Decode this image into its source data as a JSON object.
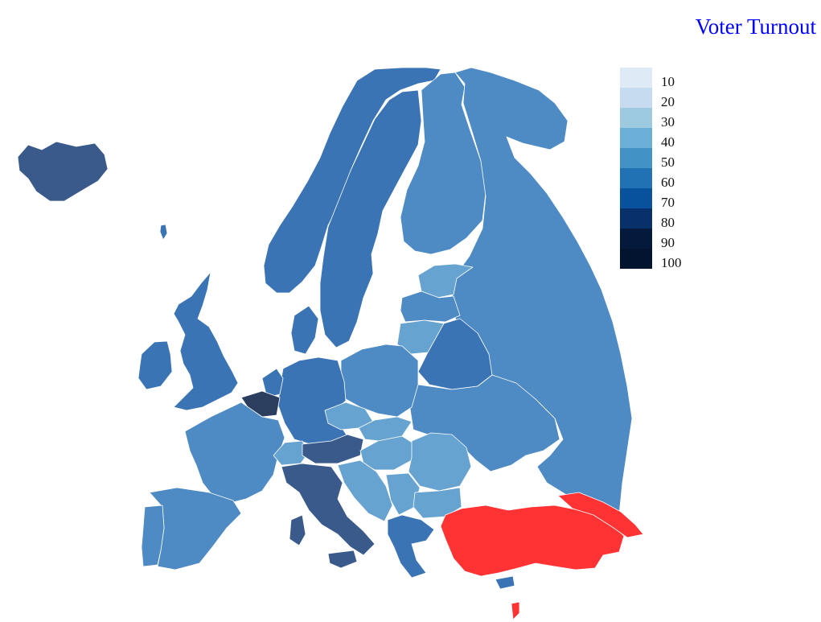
{
  "title": "Voter Turnout",
  "legend": {
    "steps": [
      {
        "label": "10",
        "color": "#deebf7"
      },
      {
        "label": "20",
        "color": "#c6dbef"
      },
      {
        "label": "30",
        "color": "#9ecae1"
      },
      {
        "label": "40",
        "color": "#6baed6"
      },
      {
        "label": "50",
        "color": "#4292c6"
      },
      {
        "label": "60",
        "color": "#2171b5"
      },
      {
        "label": "70",
        "color": "#08519c"
      },
      {
        "label": "80",
        "color": "#08306b"
      },
      {
        "label": "90",
        "color": "#041a3d"
      },
      {
        "label": "100",
        "color": "#02142f"
      }
    ]
  },
  "colors": {
    "high_turnout": "#3a5a8c",
    "very_high_turnout": "#2c3e5e",
    "mid_turnout": "#3a74b4",
    "moderate_turnout": "#4e8ac4",
    "lower_turnout": "#67a3d0",
    "highlighted": "#ff3333"
  },
  "regions": [
    {
      "name": "iceland",
      "shade": "high_turnout"
    },
    {
      "name": "ireland",
      "shade": "mid_turnout"
    },
    {
      "name": "united-kingdom",
      "shade": "mid_turnout"
    },
    {
      "name": "norway",
      "shade": "mid_turnout"
    },
    {
      "name": "sweden",
      "shade": "mid_turnout"
    },
    {
      "name": "finland",
      "shade": "moderate_turnout"
    },
    {
      "name": "russia",
      "shade": "moderate_turnout"
    },
    {
      "name": "estonia",
      "shade": "lower_turnout"
    },
    {
      "name": "latvia",
      "shade": "moderate_turnout"
    },
    {
      "name": "lithuania",
      "shade": "lower_turnout"
    },
    {
      "name": "belarus",
      "shade": "mid_turnout"
    },
    {
      "name": "ukraine",
      "shade": "moderate_turnout"
    },
    {
      "name": "poland",
      "shade": "moderate_turnout"
    },
    {
      "name": "germany",
      "shade": "mid_turnout"
    },
    {
      "name": "denmark",
      "shade": "mid_turnout"
    },
    {
      "name": "netherlands",
      "shade": "mid_turnout"
    },
    {
      "name": "belgium",
      "shade": "very_high_turnout"
    },
    {
      "name": "france",
      "shade": "moderate_turnout"
    },
    {
      "name": "spain",
      "shade": "moderate_turnout"
    },
    {
      "name": "portugal",
      "shade": "moderate_turnout"
    },
    {
      "name": "switzerland",
      "shade": "lower_turnout"
    },
    {
      "name": "austria",
      "shade": "high_turnout"
    },
    {
      "name": "italy",
      "shade": "high_turnout"
    },
    {
      "name": "czechia",
      "shade": "lower_turnout"
    },
    {
      "name": "slovakia",
      "shade": "lower_turnout"
    },
    {
      "name": "hungary",
      "shade": "lower_turnout"
    },
    {
      "name": "romania",
      "shade": "lower_turnout"
    },
    {
      "name": "balkans",
      "shade": "lower_turnout"
    },
    {
      "name": "serbia",
      "shade": "lower_turnout"
    },
    {
      "name": "bulgaria",
      "shade": "lower_turnout"
    },
    {
      "name": "greece",
      "shade": "mid_turnout"
    },
    {
      "name": "cyprus",
      "shade": "mid_turnout"
    },
    {
      "name": "turkey",
      "shade": "highlighted"
    },
    {
      "name": "caucasus",
      "shade": "highlighted"
    }
  ]
}
